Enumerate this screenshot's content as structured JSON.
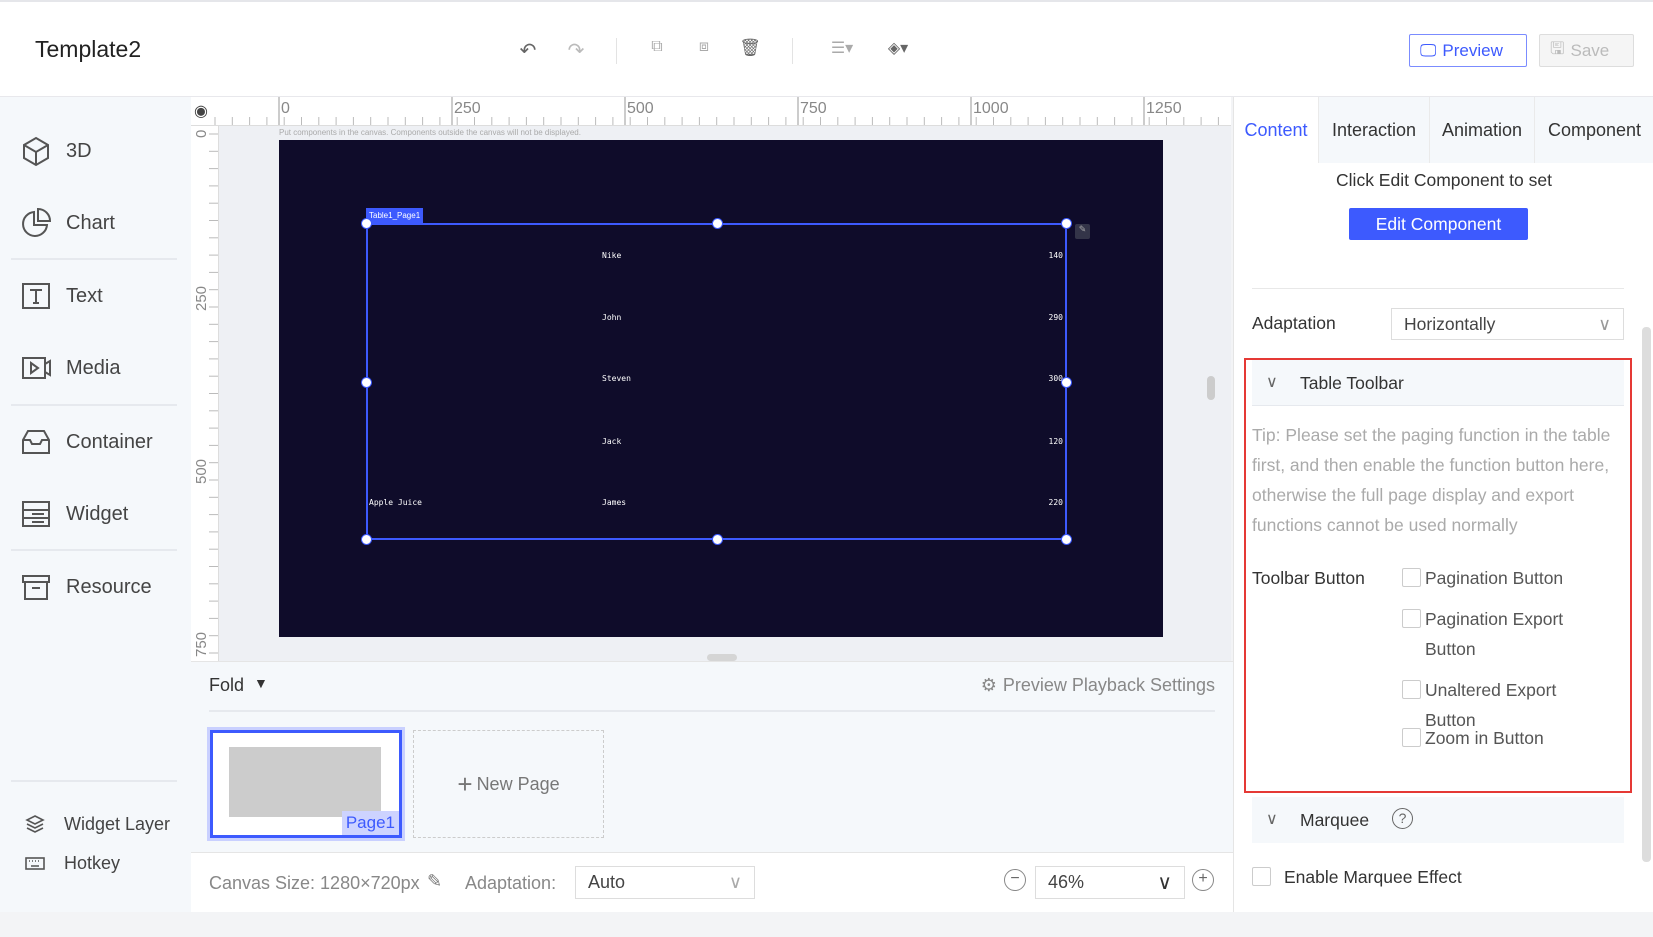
{
  "header": {
    "title": "Template2",
    "preview_label": "Preview",
    "save_label": "Save"
  },
  "sidebar": {
    "items": [
      {
        "label": "3D"
      },
      {
        "label": "Chart"
      },
      {
        "label": "Text"
      },
      {
        "label": "Media"
      },
      {
        "label": "Container"
      },
      {
        "label": "Widget"
      },
      {
        "label": "Resource"
      }
    ],
    "widget_layer": "Widget Layer",
    "hotkey": "Hotkey"
  },
  "ruler": {
    "top_ticks": [
      "0",
      "250",
      "500",
      "750",
      "1000",
      "1250"
    ],
    "left_ticks": [
      "0",
      "250",
      "500",
      "750"
    ]
  },
  "canvas": {
    "hint": "Put components in the canvas. Components outside the canvas will not be displayed.",
    "component_label": "Table1_Page1",
    "background": "#0f0c2a",
    "rows": [
      {
        "product": "",
        "name": "Nike",
        "value": "140"
      },
      {
        "product": "",
        "name": "John",
        "value": "290"
      },
      {
        "product": "",
        "name": "Steven",
        "value": "300"
      },
      {
        "product": "",
        "name": "Jack",
        "value": "120"
      },
      {
        "product": "Apple Juice",
        "name": "James",
        "value": "220"
      }
    ]
  },
  "pages": {
    "fold_label": "Fold",
    "playback_settings": "Preview Playback Settings",
    "items": [
      {
        "label": "Page1"
      }
    ],
    "new_page": "New Page"
  },
  "footer": {
    "canvas_size": "Canvas Size: 1280×720px",
    "adaptation_label": "Adaptation:",
    "adaptation_value": "Auto",
    "zoom": "46%"
  },
  "panel": {
    "tabs": [
      "Content",
      "Interaction",
      "Animation",
      "Component"
    ],
    "active_tab": "Content",
    "hint": "Click Edit Component to set",
    "edit_button": "Edit Component",
    "adaptation_label": "Adaptation",
    "adaptation_value": "Horizontally",
    "table_toolbar": {
      "title": "Table Toolbar",
      "tip": "Tip: Please set the paging function in the table first, and then enable the function button here, otherwise the full page display and export functions cannot be used normally",
      "toolbar_button_label": "Toolbar Button",
      "options": [
        {
          "label": "Pagination Button",
          "checked": false
        },
        {
          "label": "Pagination Export Button",
          "checked": false
        },
        {
          "label": "Unaltered Export Button",
          "checked": false
        },
        {
          "label": "Zoom in Button",
          "checked": false
        }
      ]
    },
    "marquee": {
      "title": "Marquee",
      "enable_label": "Enable Marquee Effect",
      "enabled": false
    }
  },
  "colors": {
    "accent": "#3d5afe",
    "highlight_box": "#e53935"
  }
}
